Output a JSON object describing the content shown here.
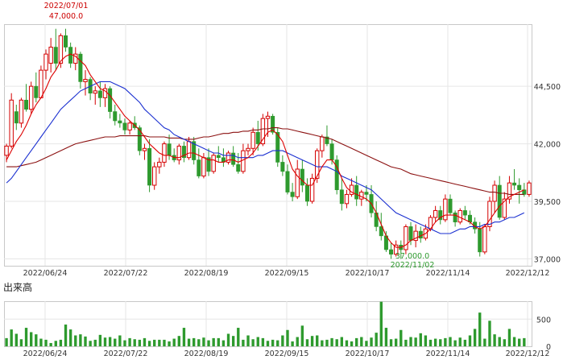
{
  "chart_data": [
    {
      "type": "candlestick",
      "x_tick_labels": [
        "2022/06/24",
        "2022/07/22",
        "2022/08/19",
        "2022/09/15",
        "2022/10/17",
        "2022/11/14",
        "2022/12/12"
      ],
      "y_tick_labels": [
        "44,500",
        "42,000",
        "39,500",
        "37,000"
      ],
      "y_ticks": [
        44500,
        42000,
        39500,
        37000
      ],
      "ylim": [
        36700,
        47200
      ],
      "grid": true,
      "annotations": {
        "high": {
          "date": "2022/07/01",
          "value": "47,000.0"
        },
        "low": {
          "date": "2022/11/02",
          "value": "37,000.0"
        }
      },
      "colors": {
        "up": "#d40000",
        "down": "#2e9a2e",
        "ma_short": "#dd0000",
        "ma_mid": "#1a2fd0",
        "ma_long": "#8b1010"
      },
      "candles": [
        [
          41500,
          42000,
          41200,
          41900
        ],
        [
          41900,
          44200,
          41800,
          43900
        ],
        [
          43400,
          43700,
          42600,
          42900
        ],
        [
          42900,
          44000,
          42700,
          43900
        ],
        [
          43900,
          44600,
          43400,
          43500
        ],
        [
          43500,
          44700,
          43300,
          44500
        ],
        [
          44500,
          45100,
          43800,
          44000
        ],
        [
          44000,
          45400,
          44000,
          45200
        ],
        [
          45200,
          46100,
          44800,
          45900
        ],
        [
          45500,
          46600,
          45100,
          46200
        ],
        [
          46200,
          47000,
          45200,
          45500
        ],
        [
          45500,
          46800,
          45300,
          46700
        ],
        [
          46700,
          47000,
          46000,
          46200
        ],
        [
          46200,
          46400,
          45300,
          45500
        ],
        [
          45500,
          46200,
          45200,
          45900
        ],
        [
          45900,
          46000,
          44400,
          44700
        ],
        [
          44700,
          45200,
          44100,
          44800
        ],
        [
          44800,
          44900,
          43900,
          44200
        ],
        [
          44200,
          44500,
          43700,
          44300
        ],
        [
          44300,
          44700,
          43600,
          44000
        ],
        [
          44000,
          44600,
          43600,
          44400
        ],
        [
          44400,
          44500,
          43100,
          43400
        ],
        [
          43400,
          43700,
          42800,
          43000
        ],
        [
          43000,
          43300,
          42700,
          42900
        ],
        [
          42900,
          43100,
          42400,
          42600
        ],
        [
          42600,
          43000,
          42400,
          42900
        ],
        [
          42900,
          43200,
          42600,
          42700
        ],
        [
          42700,
          42800,
          41500,
          41700
        ],
        [
          41700,
          42000,
          41300,
          41800
        ],
        [
          41800,
          42200,
          39900,
          40200
        ],
        [
          40200,
          41200,
          40000,
          41000
        ],
        [
          41000,
          41400,
          40700,
          41200
        ],
        [
          41200,
          42100,
          41000,
          42000
        ],
        [
          42000,
          42400,
          41300,
          41500
        ],
        [
          41500,
          41800,
          41200,
          41300
        ],
        [
          41300,
          42000,
          41100,
          41900
        ],
        [
          41900,
          42100,
          41200,
          41400
        ],
        [
          41400,
          42300,
          41300,
          42100
        ],
        [
          42100,
          42300,
          41100,
          41300
        ],
        [
          41300,
          41800,
          40500,
          40600
        ],
        [
          40600,
          41600,
          40500,
          41400
        ],
        [
          41400,
          41800,
          40600,
          40800
        ],
        [
          40800,
          41600,
          40700,
          41500
        ],
        [
          41500,
          41900,
          41200,
          41400
        ],
        [
          41400,
          41800,
          41000,
          41200
        ],
        [
          41200,
          41700,
          41100,
          41600
        ],
        [
          41600,
          41900,
          41000,
          41100
        ],
        [
          41100,
          41600,
          40700,
          40800
        ],
        [
          40800,
          42000,
          40700,
          41700
        ],
        [
          41700,
          42000,
          41500,
          41800
        ],
        [
          41800,
          42700,
          41500,
          42500
        ],
        [
          42500,
          43000,
          41700,
          42000
        ],
        [
          42000,
          43300,
          41900,
          43100
        ],
        [
          43100,
          43400,
          42300,
          43200
        ],
        [
          43200,
          43300,
          42400,
          42500
        ],
        [
          42500,
          42700,
          41000,
          41200
        ],
        [
          41200,
          41500,
          40600,
          40800
        ],
        [
          40800,
          41100,
          39800,
          39900
        ],
        [
          39900,
          40300,
          39500,
          39700
        ],
        [
          39700,
          41300,
          39600,
          40900
        ],
        [
          40900,
          41300,
          39900,
          40200
        ],
        [
          40200,
          40500,
          39300,
          39500
        ],
        [
          39500,
          40700,
          39400,
          40500
        ],
        [
          40500,
          41800,
          40300,
          41700
        ],
        [
          41700,
          42400,
          41400,
          42300
        ],
        [
          42300,
          42800,
          41900,
          42000
        ],
        [
          42000,
          42200,
          41100,
          41300
        ],
        [
          41300,
          41500,
          39800,
          40000
        ],
        [
          40000,
          40500,
          39100,
          39400
        ],
        [
          39400,
          40000,
          39200,
          39800
        ],
        [
          39800,
          40500,
          39700,
          40200
        ],
        [
          40200,
          40600,
          39300,
          39600
        ],
        [
          39600,
          40000,
          39300,
          39900
        ],
        [
          39900,
          40200,
          39500,
          39800
        ],
        [
          39800,
          40200,
          38800,
          39000
        ],
        [
          39000,
          39500,
          38200,
          38400
        ],
        [
          38400,
          39000,
          37800,
          38000
        ],
        [
          38000,
          38200,
          37300,
          37400
        ],
        [
          37400,
          37700,
          37000,
          37200
        ],
        [
          37200,
          37800,
          37100,
          37600
        ],
        [
          37600,
          37800,
          37000,
          37400
        ],
        [
          37400,
          38500,
          37200,
          38400
        ],
        [
          38400,
          38600,
          37600,
          37800
        ],
        [
          37800,
          38500,
          37500,
          38200
        ],
        [
          38200,
          38400,
          37700,
          37900
        ],
        [
          37900,
          38500,
          37800,
          38300
        ],
        [
          38300,
          38900,
          38200,
          38800
        ],
        [
          38800,
          39300,
          38600,
          39100
        ],
        [
          39100,
          39300,
          38500,
          38700
        ],
        [
          38700,
          39800,
          38600,
          39600
        ],
        [
          39600,
          39800,
          38900,
          39000
        ],
        [
          39000,
          39100,
          38400,
          38600
        ],
        [
          38600,
          39200,
          38500,
          39100
        ],
        [
          39100,
          39300,
          38700,
          38900
        ],
        [
          38900,
          39100,
          38500,
          38600
        ],
        [
          38600,
          38800,
          38100,
          38300
        ],
        [
          38300,
          38600,
          37100,
          37300
        ],
        [
          37300,
          38500,
          37200,
          38400
        ],
        [
          38400,
          39700,
          38200,
          39500
        ],
        [
          39500,
          40400,
          39000,
          40200
        ],
        [
          40200,
          40600,
          38700,
          38800
        ],
        [
          38800,
          39900,
          38700,
          39600
        ],
        [
          39600,
          40600,
          39400,
          40300
        ],
        [
          40300,
          40900,
          40000,
          40200
        ],
        [
          40200,
          40500,
          39400,
          40000
        ],
        [
          40000,
          40300,
          39700,
          39800
        ],
        [
          39800,
          40400,
          39700,
          40300
        ]
      ],
      "ma_short": [
        41300,
        41700,
        42100,
        42400,
        42800,
        43300,
        43700,
        44000,
        44400,
        44900,
        45200,
        45600,
        45800,
        45900,
        45800,
        45600,
        45400,
        45000,
        44700,
        44400,
        44300,
        44100,
        43800,
        43500,
        43200,
        43000,
        42800,
        42600,
        42300,
        42000,
        41800,
        41600,
        41500,
        41500,
        41400,
        41400,
        41500,
        41600,
        41600,
        41500,
        41400,
        41300,
        41300,
        41200,
        41200,
        41300,
        41300,
        41200,
        41300,
        41400,
        41600,
        41900,
        42200,
        42500,
        42600,
        42400,
        42100,
        41500,
        40900,
        40600,
        40400,
        40200,
        40200,
        40600,
        41000,
        41300,
        41300,
        41000,
        40500,
        40100,
        39900,
        39800,
        39700,
        39600,
        39400,
        39000,
        38500,
        38000,
        37700,
        37500,
        37500,
        37600,
        37800,
        37900,
        38000,
        38100,
        38300,
        38600,
        38800,
        38900,
        38900,
        38900,
        38800,
        38700,
        38600,
        38400,
        38300,
        38400,
        38700,
        39000,
        39300,
        39500,
        39700,
        39800,
        39900,
        40000
      ],
      "ma_mid": [
        40300,
        40500,
        40800,
        41100,
        41400,
        41700,
        42000,
        42300,
        42600,
        42900,
        43200,
        43500,
        43700,
        43900,
        44100,
        44300,
        44400,
        44500,
        44600,
        44700,
        44700,
        44700,
        44600,
        44500,
        44400,
        44200,
        44000,
        43800,
        43500,
        43300,
        43100,
        42900,
        42700,
        42600,
        42400,
        42300,
        42200,
        42100,
        42000,
        41900,
        41800,
        41700,
        41600,
        41600,
        41500,
        41500,
        41500,
        41400,
        41400,
        41400,
        41400,
        41500,
        41500,
        41600,
        41700,
        41700,
        41700,
        41600,
        41500,
        41400,
        41300,
        41200,
        41100,
        41000,
        41000,
        41000,
        40900,
        40800,
        40600,
        40500,
        40400,
        40300,
        40200,
        40100,
        40000,
        39800,
        39600,
        39400,
        39200,
        39000,
        38900,
        38800,
        38700,
        38600,
        38500,
        38400,
        38300,
        38200,
        38100,
        38100,
        38100,
        38200,
        38300,
        38300,
        38400,
        38400,
        38400,
        38500,
        38500,
        38600,
        38600,
        38700,
        38800,
        38800,
        38900,
        39000
      ],
      "ma_long": [
        41000,
        41000,
        41000,
        41050,
        41100,
        41150,
        41200,
        41300,
        41400,
        41500,
        41600,
        41700,
        41800,
        41900,
        42000,
        42050,
        42100,
        42150,
        42200,
        42250,
        42300,
        42300,
        42300,
        42350,
        42350,
        42350,
        42350,
        42350,
        42350,
        42300,
        42300,
        42300,
        42300,
        42250,
        42250,
        42250,
        42200,
        42200,
        42200,
        42250,
        42300,
        42300,
        42350,
        42400,
        42450,
        42450,
        42500,
        42500,
        42550,
        42550,
        42600,
        42600,
        42650,
        42650,
        42700,
        42700,
        42650,
        42650,
        42600,
        42550,
        42500,
        42450,
        42400,
        42350,
        42300,
        42250,
        42200,
        42100,
        42000,
        41900,
        41800,
        41700,
        41600,
        41500,
        41400,
        41300,
        41200,
        41100,
        41000,
        40950,
        40900,
        40800,
        40700,
        40650,
        40600,
        40550,
        40500,
        40450,
        40400,
        40350,
        40300,
        40250,
        40200,
        40150,
        40100,
        40050,
        40000,
        39950,
        39900,
        39900,
        39850,
        39850,
        39800,
        39800,
        39800,
        39800
      ]
    },
    {
      "type": "bar",
      "title": "出来高",
      "y_tick_labels": [
        "500",
        "0"
      ],
      "ylim": [
        0,
        830
      ],
      "color": "#2e9a2e",
      "values": [
        150,
        310,
        230,
        130,
        340,
        260,
        220,
        140,
        120,
        60,
        100,
        120,
        400,
        310,
        200,
        220,
        180,
        100,
        120,
        210,
        160,
        170,
        140,
        200,
        110,
        150,
        130,
        120,
        150,
        100,
        120,
        120,
        120,
        90,
        140,
        190,
        340,
        140,
        150,
        130,
        160,
        110,
        150,
        150,
        110,
        230,
        190,
        340,
        120,
        200,
        130,
        170,
        150,
        100,
        120,
        110,
        200,
        300,
        90,
        170,
        380,
        130,
        190,
        200,
        110,
        120,
        150,
        130,
        170,
        110,
        90,
        150,
        170,
        100,
        160,
        250,
        820,
        340,
        130,
        140,
        300,
        120,
        170,
        160,
        240,
        200,
        120,
        140,
        130,
        150,
        170,
        110,
        160,
        120,
        200,
        320,
        620,
        140,
        470,
        220,
        170,
        130,
        320,
        170,
        140,
        150
      ]
    }
  ]
}
